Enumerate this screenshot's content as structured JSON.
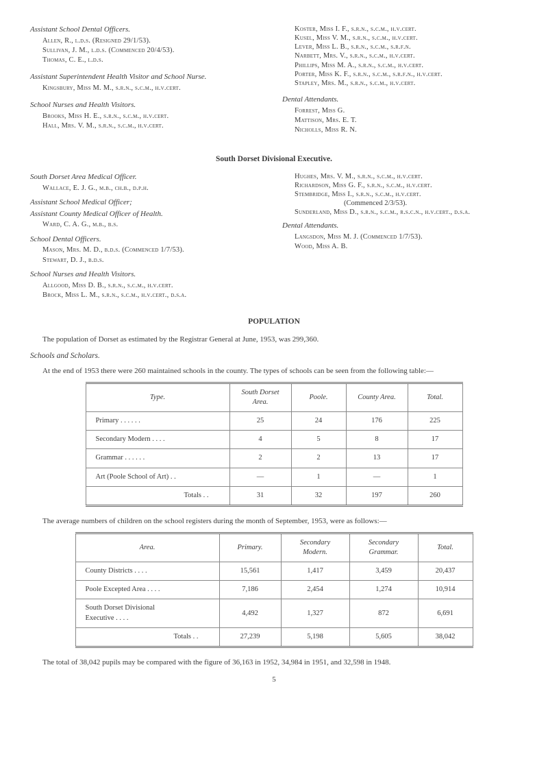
{
  "top_left": {
    "s1": {
      "title": "Assistant School Dental Officers.",
      "lines": [
        "Allen, R., l.d.s. (Resigned 29/1/53).",
        "Sullivan, J. M., l.d.s. (Commenced 20/4/53).",
        "Thomas, C. E., l.d.s."
      ]
    },
    "s2": {
      "title": "Assistant Superintendent Health Visitor and School Nurse.",
      "lines": [
        "Kingsbury, Miss M. M., s.r.n., s.c.m., h.v.cert."
      ]
    },
    "s3": {
      "title": "School Nurses and Health Visitors.",
      "lines": [
        "Brooks, Miss H. E., s.r.n., s.c.m., h.v.cert.",
        "Hall, Mrs. V. M., s.r.n., s.c.m., h.v.cert."
      ]
    }
  },
  "top_right": {
    "lines1": [
      "Koster, Miss I. F., s.r.n., s.c.m., h.v.cert.",
      "Kusel, Miss V. M., s.r.n., s.c.m., h.v.cert.",
      "Lever, Miss L. B., s.r.n., s.c.m., s.r.f.n.",
      "Narbett, Mrs. V., s.r.n., s.c.m., h.v.cert.",
      "Phillips, Miss M. A., s.r.n., s.c.m., h.v.cert.",
      "Porter, Miss K. F., s.r.n., s.c.m., s.r.f.n., h.v.cert.",
      "Stapley, Mrs. M., s.r.n., s.c.m., h.v.cert."
    ],
    "s2": {
      "title": "Dental Attendants.",
      "lines": [
        "Forrest, Miss G.",
        "Mattison, Mrs. E. T.",
        "Nicholls, Miss R. N."
      ]
    }
  },
  "divisional_heading": "South Dorset Divisional Executive.",
  "div_left": {
    "s1": {
      "title": "South Dorset Area Medical Officer.",
      "lines": [
        "Wallace, E. J. G., m.b., ch.b., d.p.h."
      ]
    },
    "s2": {
      "title1": "Assistant School Medical Officer;",
      "title2": "Assistant County Medical Officer of Health.",
      "lines": [
        "Ward, C. A. G., m.b., b.s."
      ]
    },
    "s3": {
      "title": "School Dental Officers.",
      "lines": [
        "Mason, Mrs. M. D., b.d.s. (Commenced 1/7/53).",
        "Stewart, D. J., b.d.s."
      ]
    },
    "s4": {
      "title": "School Nurses and Health Visitors.",
      "lines": [
        "Allgood, Miss D. B., s.r.n., s.c.m., h.v.cert.",
        "Brock, Miss L. M., s.r.n., s.c.m., h.v.cert., d.s.a."
      ]
    }
  },
  "div_right": {
    "lines1": [
      "Hughes, Mrs. V. M., s.r.n., s.c.m., h.v.cert.",
      "Richardson, Miss G. F., s.r.n., s.c.m., h.v.cert.",
      "Stembridge, Miss I., s.r.n., s.c.m., h.v.cert."
    ],
    "lines1b": "(Commenced 2/3/53).",
    "lines1c": "Sunderland, Miss D., s.r.n., s.c.m., r.s.c.n., h.v.cert., d.s.a.",
    "s2": {
      "title": "Dental Attendants.",
      "lines": [
        "Langsdon, Miss M. J. (Commenced 1/7/53).",
        "Wood, Miss A. B."
      ]
    }
  },
  "population": {
    "heading": "POPULATION",
    "para": "The population of Dorset as estimated by the Registrar General at June, 1953, was 299,360."
  },
  "schools": {
    "heading": "Schools and Scholars.",
    "para": "At the end of 1953 there were 260 maintained schools in the county. The types of schools can be seen from the following table:—"
  },
  "table1": {
    "columns": [
      "Type.",
      "South Dorset Area.",
      "Poole.",
      "County Area.",
      "Total."
    ],
    "rows": [
      [
        "Primary     . .        . .       . .",
        "25",
        "24",
        "176",
        "225"
      ],
      [
        "Secondary Modern      . .      . .",
        "4",
        "5",
        "8",
        "17"
      ],
      [
        "Grammar      . .       . .       . .",
        "2",
        "2",
        "13",
        "17"
      ],
      [
        "Art (Poole School of Art)       . .",
        "—",
        "1",
        "—",
        "1"
      ]
    ],
    "totals": [
      "Totals       . .",
      "31",
      "32",
      "197",
      "260"
    ],
    "col_widths": [
      "210px",
      "90px",
      "80px",
      "90px",
      "80px"
    ]
  },
  "avg_para": "The average numbers of children on the school registers during the month of September, 1953, were as follows:—",
  "table2": {
    "columns": [
      "Area.",
      "Primary.",
      "Secondary Modern.",
      "Secondary Grammar.",
      "Total."
    ],
    "rows": [
      [
        "County Districts         . .       . .",
        "15,561",
        "1,417",
        "3,459",
        "20,437"
      ],
      [
        "Poole Excepted Area   . .       . .",
        "7,186",
        "2,454",
        "1,274",
        "10,914"
      ],
      [
        "South Dorset Divisional\nExecutive            . .       . .",
        "4,492",
        "1,327",
        "872",
        "6,691"
      ]
    ],
    "totals": [
      "Totals       . .",
      "27,239",
      "5,198",
      "5,605",
      "38,042"
    ],
    "col_widths": [
      "210px",
      "90px",
      "100px",
      "100px",
      "80px"
    ]
  },
  "final_para": "The total of 38,042 pupils may be compared with the figure of 36,163 in 1952, 34,984 in 1951, and 32,598 in 1948.",
  "page_number": "5"
}
